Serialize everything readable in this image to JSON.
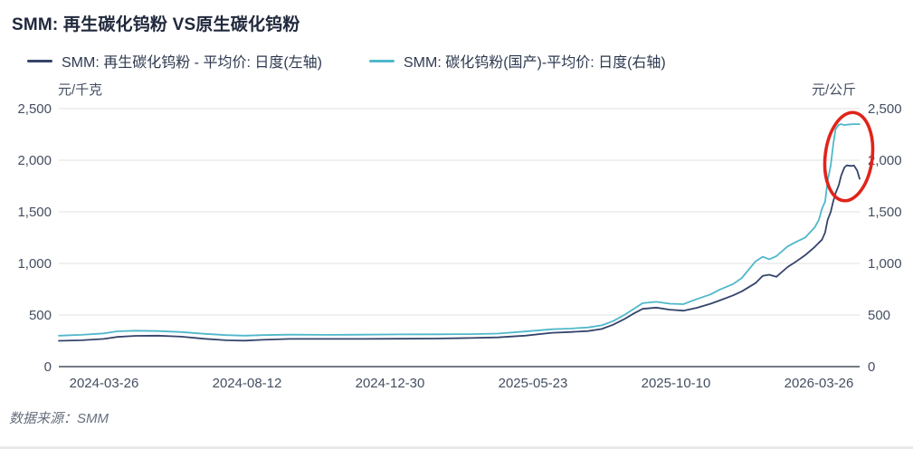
{
  "header": {
    "title": "SMM: 再生碳化钨粉 VS原生碳化钨粉"
  },
  "legend": [
    {
      "name": "recycled-tungsten-carbide",
      "label": "SMM: 再生碳化钨粉 - 平均价: 日度(左轴)",
      "color": "#35446a"
    },
    {
      "name": "domestic-tungsten-carbide",
      "label": "SMM: 碳化钨粉(国产)-平均价: 日度(右轴)",
      "color": "#4fb8ca"
    }
  ],
  "footer": {
    "source": "数据来源：SMM"
  },
  "chart_data": {
    "type": "line",
    "title": "SMM: 再生碳化钨粉 VS原生碳化钨粉",
    "grid": true,
    "legend_position": "top",
    "left_axis": {
      "unit": "元/千克",
      "range": [
        0,
        2500
      ],
      "ticks": [
        0,
        500,
        1000,
        1500,
        2000,
        2500
      ]
    },
    "right_axis": {
      "unit": "元/公斤",
      "range": [
        0,
        2500
      ],
      "ticks": [
        0,
        500,
        1000,
        1500,
        2000,
        2500
      ]
    },
    "y_tick_labels": [
      "0",
      "500",
      "1,000",
      "1,500",
      "2,000",
      "2,500"
    ],
    "x_ticks": [
      "2024-03-26",
      "2024-08-12",
      "2024-12-30",
      "2025-05-23",
      "2025-10-10",
      "2026-03-26"
    ],
    "colors": {
      "grid": "#e8e8e8",
      "axis": "#474e5c",
      "tick_text": "#444e61"
    },
    "series": [
      {
        "name": "SMM: 再生碳化钨粉 - 平均价: 日度(左轴)",
        "axis": "left",
        "color": "#35446a",
        "points": [
          [
            0.0,
            250
          ],
          [
            0.028,
            255
          ],
          [
            0.056,
            268
          ],
          [
            0.073,
            288
          ],
          [
            0.096,
            298
          ],
          [
            0.124,
            300
          ],
          [
            0.153,
            290
          ],
          [
            0.181,
            270
          ],
          [
            0.209,
            255
          ],
          [
            0.232,
            252
          ],
          [
            0.254,
            260
          ],
          [
            0.288,
            268
          ],
          [
            0.333,
            268
          ],
          [
            0.379,
            268
          ],
          [
            0.424,
            270
          ],
          [
            0.469,
            272
          ],
          [
            0.514,
            277
          ],
          [
            0.548,
            283
          ],
          [
            0.582,
            300
          ],
          [
            0.616,
            328
          ],
          [
            0.638,
            335
          ],
          [
            0.661,
            345
          ],
          [
            0.678,
            365
          ],
          [
            0.692,
            405
          ],
          [
            0.706,
            460
          ],
          [
            0.718,
            515
          ],
          [
            0.729,
            560
          ],
          [
            0.746,
            572
          ],
          [
            0.763,
            552
          ],
          [
            0.78,
            542
          ],
          [
            0.797,
            570
          ],
          [
            0.814,
            610
          ],
          [
            0.825,
            640
          ],
          [
            0.842,
            690
          ],
          [
            0.853,
            730
          ],
          [
            0.87,
            810
          ],
          [
            0.879,
            880
          ],
          [
            0.887,
            890
          ],
          [
            0.896,
            870
          ],
          [
            0.91,
            965
          ],
          [
            0.921,
            1020
          ],
          [
            0.932,
            1080
          ],
          [
            0.944,
            1160
          ],
          [
            0.949,
            1200
          ],
          [
            0.953,
            1230
          ],
          [
            0.957,
            1300
          ],
          [
            0.96,
            1420
          ],
          [
            0.964,
            1500
          ],
          [
            0.967,
            1600
          ],
          [
            0.97,
            1680
          ],
          [
            0.974,
            1760
          ],
          [
            0.977,
            1850
          ],
          [
            0.981,
            1930
          ],
          [
            0.984,
            1950
          ],
          [
            0.989,
            1945
          ],
          [
            0.993,
            1948
          ],
          [
            0.997,
            1900
          ],
          [
            1.0,
            1820
          ]
        ]
      },
      {
        "name": "SMM: 碳化钨粉(国产)-平均价: 日度(右轴)",
        "axis": "right",
        "color": "#4fb8ca",
        "points": [
          [
            0.0,
            300
          ],
          [
            0.028,
            308
          ],
          [
            0.056,
            322
          ],
          [
            0.073,
            342
          ],
          [
            0.096,
            348
          ],
          [
            0.124,
            345
          ],
          [
            0.153,
            335
          ],
          [
            0.181,
            318
          ],
          [
            0.209,
            305
          ],
          [
            0.232,
            300
          ],
          [
            0.254,
            305
          ],
          [
            0.288,
            310
          ],
          [
            0.333,
            308
          ],
          [
            0.379,
            310
          ],
          [
            0.424,
            312
          ],
          [
            0.469,
            313
          ],
          [
            0.514,
            315
          ],
          [
            0.548,
            320
          ],
          [
            0.582,
            340
          ],
          [
            0.616,
            362
          ],
          [
            0.638,
            368
          ],
          [
            0.661,
            380
          ],
          [
            0.678,
            400
          ],
          [
            0.692,
            440
          ],
          [
            0.706,
            500
          ],
          [
            0.718,
            560
          ],
          [
            0.729,
            615
          ],
          [
            0.746,
            628
          ],
          [
            0.763,
            610
          ],
          [
            0.78,
            605
          ],
          [
            0.797,
            655
          ],
          [
            0.814,
            700
          ],
          [
            0.825,
            745
          ],
          [
            0.842,
            800
          ],
          [
            0.853,
            860
          ],
          [
            0.87,
            1020
          ],
          [
            0.879,
            1065
          ],
          [
            0.887,
            1040
          ],
          [
            0.896,
            1070
          ],
          [
            0.91,
            1165
          ],
          [
            0.921,
            1210
          ],
          [
            0.932,
            1250
          ],
          [
            0.944,
            1350
          ],
          [
            0.949,
            1420
          ],
          [
            0.953,
            1530
          ],
          [
            0.957,
            1600
          ],
          [
            0.96,
            1800
          ],
          [
            0.964,
            1950
          ],
          [
            0.967,
            2150
          ],
          [
            0.97,
            2300
          ],
          [
            0.974,
            2345
          ],
          [
            0.977,
            2350
          ],
          [
            0.981,
            2340
          ],
          [
            0.984,
            2345
          ],
          [
            0.989,
            2348
          ],
          [
            0.993,
            2350
          ],
          [
            0.997,
            2350
          ],
          [
            1.0,
            2350
          ]
        ]
      }
    ],
    "annotation": {
      "shape": "ellipse",
      "purpose": "highlights final price spike of both series",
      "color": "#e0241b"
    }
  }
}
